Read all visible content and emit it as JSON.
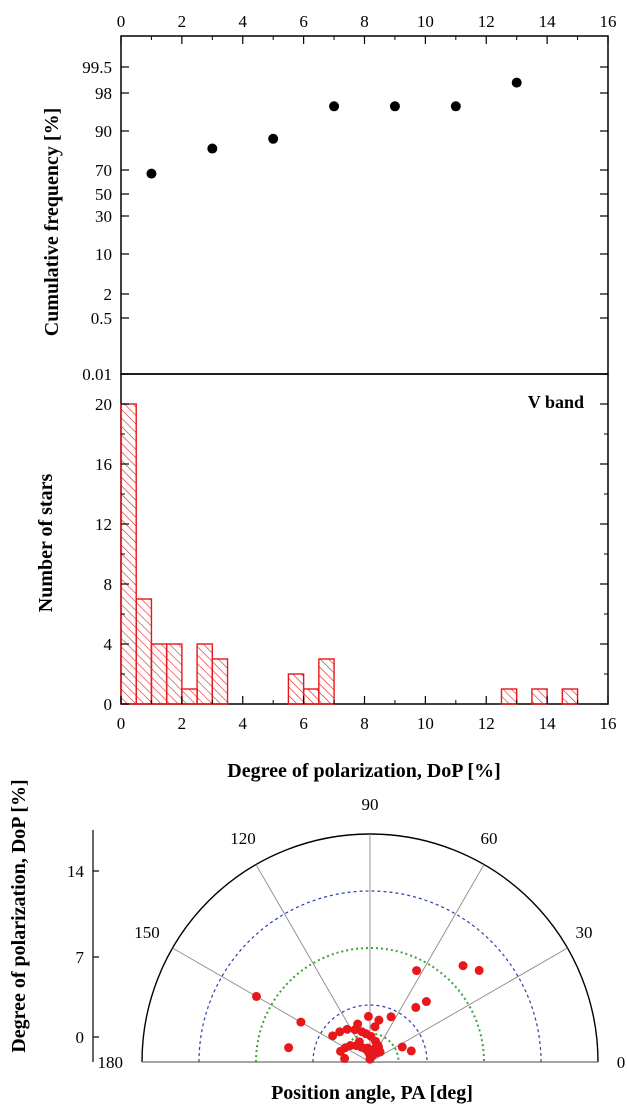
{
  "chart_data": [
    {
      "id": "cumulative",
      "type": "scatter",
      "xlabel": "",
      "ylabel": "Cumulative frequency [%]",
      "xlim": [
        0,
        16
      ],
      "x_ticks": [
        "0",
        "2",
        "4",
        "6",
        "8",
        "10",
        "12",
        "14",
        "16"
      ],
      "y_scale": "probability",
      "y_ticks": [
        "0.01",
        "0.5",
        "2",
        "10",
        "30",
        "50",
        "70",
        "90",
        "98",
        "99.5"
      ],
      "points": [
        {
          "x": 1,
          "y": 67
        },
        {
          "x": 3,
          "y": 81
        },
        {
          "x": 5,
          "y": 86
        },
        {
          "x": 7,
          "y": 95.2
        },
        {
          "x": 9,
          "y": 95.2
        },
        {
          "x": 11,
          "y": 95.2
        },
        {
          "x": 13,
          "y": 98.6
        }
      ],
      "marker_color": "#000000"
    },
    {
      "id": "histogram",
      "type": "bar",
      "band_label": "V band",
      "xlabel": "Degree of polarization, DoP [%]",
      "ylabel": "Number of stars",
      "xlim": [
        0,
        16
      ],
      "ylim": [
        0,
        21
      ],
      "x_ticks": [
        "0",
        "2",
        "4",
        "6",
        "8",
        "10",
        "12",
        "14",
        "16"
      ],
      "y_ticks": [
        "0",
        "4",
        "8",
        "12",
        "16",
        "20"
      ],
      "bin_width": 0.5,
      "bins": [
        {
          "start": 0,
          "count": 20
        },
        {
          "start": 0.5,
          "count": 7
        },
        {
          "start": 1,
          "count": 4
        },
        {
          "start": 1.5,
          "count": 4
        },
        {
          "start": 2,
          "count": 1
        },
        {
          "start": 2.5,
          "count": 4
        },
        {
          "start": 3,
          "count": 3
        },
        {
          "start": 5.5,
          "count": 2
        },
        {
          "start": 6,
          "count": 1
        },
        {
          "start": 6.5,
          "count": 3
        },
        {
          "start": 12.5,
          "count": 1
        },
        {
          "start": 13.5,
          "count": 1
        },
        {
          "start": 14.5,
          "count": 1
        }
      ],
      "bar_color": "#e8171b"
    },
    {
      "id": "polar",
      "type": "scatter",
      "coordinate_system": "polar-half",
      "xlabel": "Position angle, PA [deg]",
      "ylabel": "Degree of polarization, DoP [%]",
      "r_range": [
        0,
        16
      ],
      "r_ticks": [
        "0",
        "7",
        "14"
      ],
      "angle_ticks": [
        "0",
        "30",
        "60",
        "90",
        "120",
        "150",
        "180"
      ],
      "circle_dop_blue": [
        4,
        12
      ],
      "circle_dop_green": [
        2,
        8
      ],
      "points": [
        {
          "pa": 90,
          "dop": 0.2
        },
        {
          "pa": 80,
          "dop": 0.4
        },
        {
          "pa": 72,
          "dop": 0.6
        },
        {
          "pa": 95,
          "dop": 0.6
        },
        {
          "pa": 85,
          "dop": 0.8
        },
        {
          "pa": 70,
          "dop": 1.0
        },
        {
          "pa": 60,
          "dop": 1.2
        },
        {
          "pa": 100,
          "dop": 1.0
        },
        {
          "pa": 110,
          "dop": 1.0
        },
        {
          "pa": 75,
          "dop": 1.5
        },
        {
          "pa": 65,
          "dop": 1.3
        },
        {
          "pa": 120,
          "dop": 1.2
        },
        {
          "pa": 130,
          "dop": 1.5
        },
        {
          "pa": 140,
          "dop": 1.8
        },
        {
          "pa": 150,
          "dop": 2.0
        },
        {
          "pa": 160,
          "dop": 2.2
        },
        {
          "pa": 172,
          "dop": 1.8
        },
        {
          "pa": 55,
          "dop": 0.8
        },
        {
          "pa": 45,
          "dop": 1.0
        },
        {
          "pa": 82,
          "dop": 2.5
        },
        {
          "pa": 78,
          "dop": 3.0
        },
        {
          "pa": 25,
          "dop": 2.5
        },
        {
          "pa": 15,
          "dop": 3.0
        },
        {
          "pa": 65,
          "dop": 3.5
        },
        {
          "pa": 50,
          "dop": 5.0
        },
        {
          "pa": 47,
          "dop": 5.8
        },
        {
          "pa": 63,
          "dop": 7.2
        },
        {
          "pa": 46,
          "dop": 9.4
        },
        {
          "pa": 40,
          "dop": 10.0
        },
        {
          "pa": 150,
          "dop": 5.6
        },
        {
          "pa": 150,
          "dop": 9.2
        },
        {
          "pa": 105,
          "dop": 2.2
        },
        {
          "pa": 115,
          "dop": 2.5
        },
        {
          "pa": 125,
          "dop": 2.8
        },
        {
          "pa": 135,
          "dop": 3.0
        },
        {
          "pa": 145,
          "dop": 3.2
        },
        {
          "pa": 118,
          "dop": 1.6
        },
        {
          "pa": 170,
          "dop": 5.8
        },
        {
          "pa": 98,
          "dop": 2.0
        },
        {
          "pa": 88,
          "dop": 1.8
        },
        {
          "pa": 102,
          "dop": 0.8
        },
        {
          "pa": 68,
          "dop": 0.5
        },
        {
          "pa": 108,
          "dop": 2.8
        },
        {
          "pa": 92,
          "dop": 3.2
        }
      ],
      "marker_color": "#e8171b"
    }
  ]
}
